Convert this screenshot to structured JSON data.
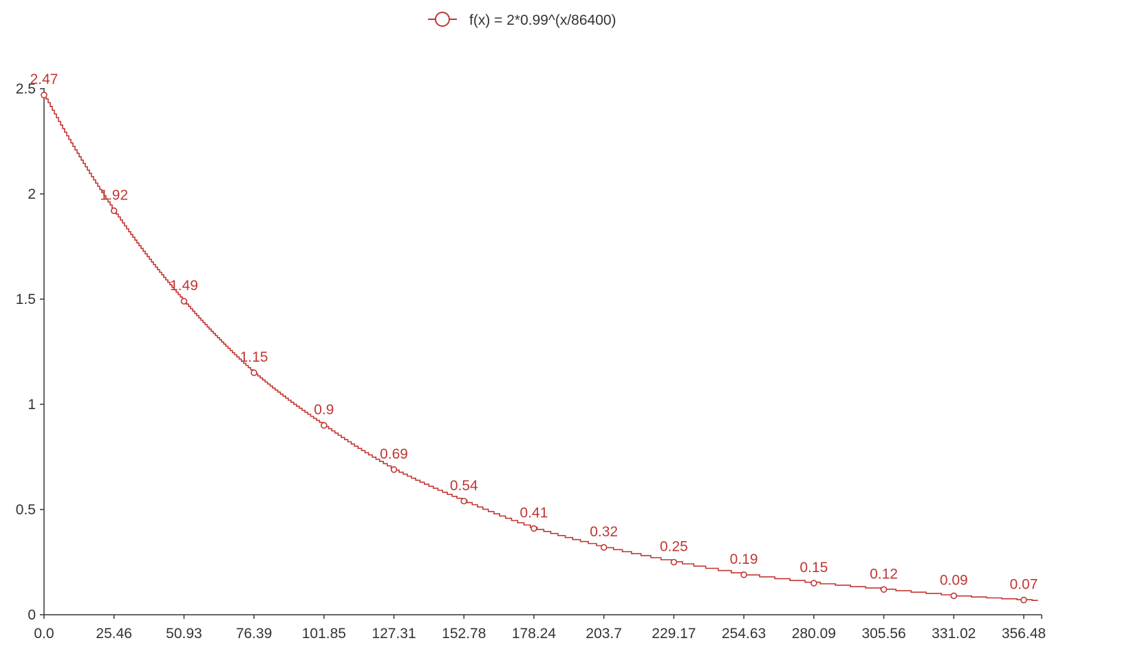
{
  "chart_data": {
    "type": "line",
    "step": true,
    "color": "#c23531",
    "legend": {
      "label": "f(x) = 2*0.99^(x/86400)",
      "placement": "top-center",
      "icon": "circle-line-icon"
    },
    "x_axis": {
      "tick_labels": [
        "0.0",
        "25.46",
        "50.93",
        "76.39",
        "101.85",
        "127.31",
        "152.78",
        "178.24",
        "203.7",
        "229.17",
        "254.63",
        "280.09",
        "305.56",
        "331.02",
        "356.48"
      ],
      "xlim": [
        0,
        363
      ]
    },
    "y_axis": {
      "tick_labels": [
        "0",
        "0.5",
        "1",
        "1.5",
        "2",
        "2.5"
      ],
      "ticks": [
        0,
        0.5,
        1,
        1.5,
        2,
        2.5
      ],
      "ylim": [
        0,
        2.5
      ]
    },
    "series": [
      {
        "name": "f(x) = 2*0.99^(x/86400)",
        "x": [
          0,
          25.46,
          50.93,
          76.39,
          101.85,
          127.31,
          152.78,
          178.24,
          203.7,
          229.17,
          254.63,
          280.09,
          305.56,
          331.02,
          356.48
        ],
        "values": [
          2.47,
          1.92,
          1.49,
          1.15,
          0.9,
          0.69,
          0.54,
          0.41,
          0.32,
          0.25,
          0.19,
          0.15,
          0.12,
          0.09,
          0.07
        ],
        "labels": [
          "2.47",
          "1.92",
          "1.49",
          "1.15",
          "0.9",
          "0.69",
          "0.54",
          "0.41",
          "0.32",
          "0.25",
          "0.19",
          "0.15",
          "0.12",
          "0.09",
          "0.07"
        ]
      }
    ],
    "grid": false
  }
}
